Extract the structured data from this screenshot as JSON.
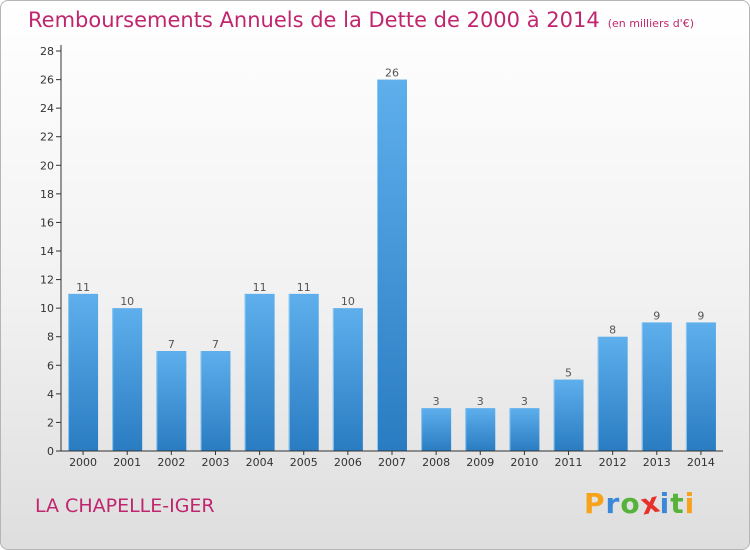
{
  "title": "Remboursements Annuels de la Dette de 2000 à 2014",
  "subtitle": "(en milliers d'€)",
  "commune": "LA CHAPELLE-IGER",
  "brand": {
    "letters": [
      "P",
      "r",
      "o",
      "x",
      "i",
      "t",
      "i"
    ],
    "colors": [
      "#f7a21b",
      "#3c88d8",
      "#56b33a",
      "#e6322b",
      "#3c88d8",
      "#56b33a",
      "#f7a21b"
    ]
  },
  "colors": {
    "bar": "#3d95dc",
    "bar_light": "#5dadea",
    "bar_dark": "#1f73b8",
    "axis": "#333333",
    "title": "#c0266e"
  },
  "chart_data": {
    "type": "bar",
    "categories": [
      "2000",
      "2001",
      "2002",
      "2003",
      "2004",
      "2005",
      "2006",
      "2007",
      "2008",
      "2009",
      "2010",
      "2011",
      "2012",
      "2013",
      "2014"
    ],
    "values": [
      11,
      10,
      7,
      7,
      11,
      11,
      10,
      26,
      3,
      3,
      3,
      5,
      8,
      9,
      9
    ],
    "title": "Remboursements Annuels de la Dette de 2000 à 2014",
    "subtitle": "(en milliers d'€)",
    "ylim": [
      0,
      28
    ],
    "yticks": [
      0,
      2,
      4,
      6,
      8,
      10,
      12,
      14,
      16,
      18,
      20,
      22,
      24,
      26,
      28
    ],
    "grid": false
  }
}
